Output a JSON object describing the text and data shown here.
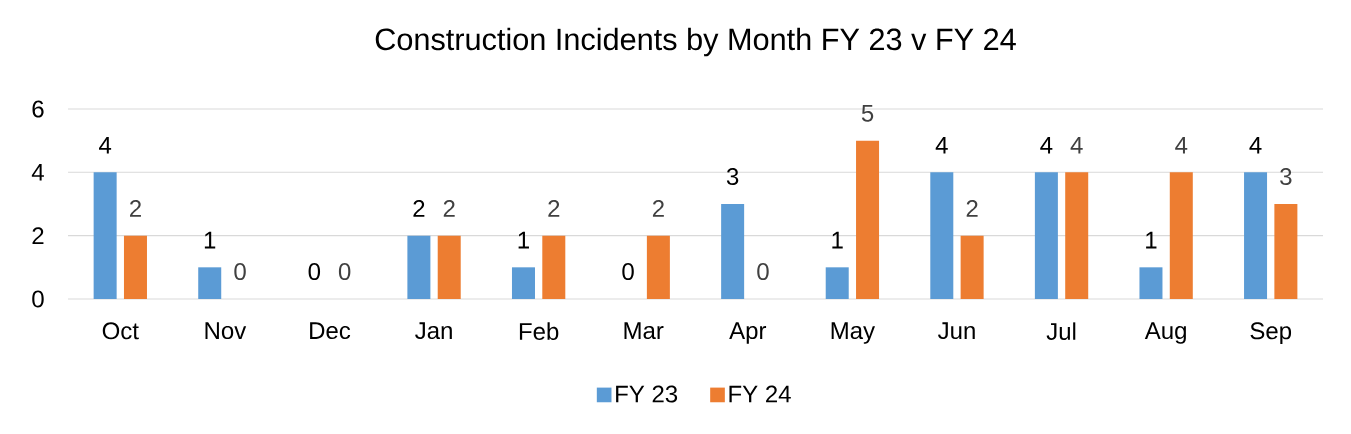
{
  "chart_data": {
    "type": "bar",
    "title": "Construction Incidents by Month FY 23 v FY 24",
    "categories": [
      "Oct",
      "Nov",
      "Dec",
      "Jan",
      "Feb",
      "Mar",
      "Apr",
      "May",
      "Jun",
      "Jul",
      "Aug",
      "Sep"
    ],
    "series": [
      {
        "name": "FY 23",
        "color": "#5b9bd5",
        "values": [
          4,
          1,
          0,
          2,
          1,
          0,
          3,
          1,
          4,
          4,
          1,
          4
        ]
      },
      {
        "name": "FY 24",
        "color": "#ed7d31",
        "values": [
          2,
          0,
          0,
          2,
          2,
          2,
          0,
          5,
          2,
          4,
          4,
          3
        ]
      }
    ],
    "ylim": [
      0,
      6
    ],
    "yticks": [
      0,
      2,
      4,
      6
    ],
    "grid": "y",
    "legend": "bottom",
    "data_labels": true
  }
}
